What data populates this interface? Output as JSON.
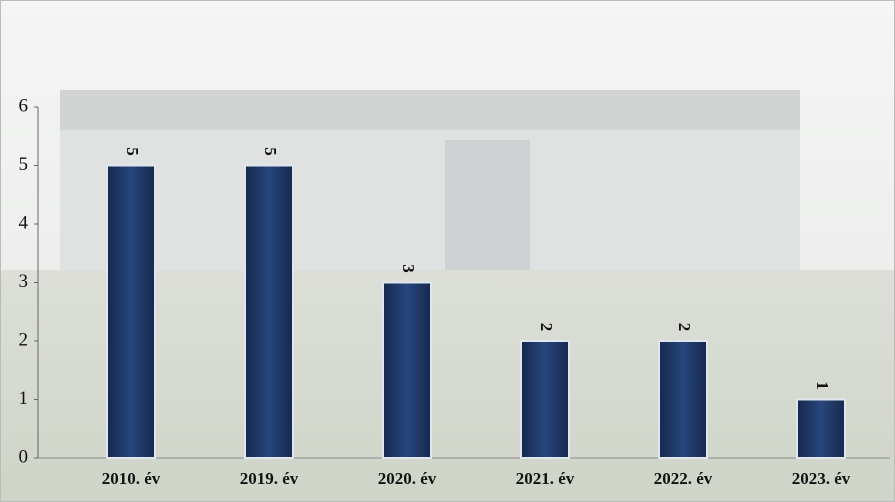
{
  "chart_data": {
    "type": "bar",
    "categories": [
      "2010. év",
      "2019. év",
      "2020. év",
      "2021. év",
      "2022. év",
      "2023. év"
    ],
    "values": [
      5,
      5,
      3,
      2,
      2,
      1
    ],
    "color": "#1f3864",
    "ylim": [
      0,
      6
    ],
    "yticks": [
      0,
      1,
      2,
      3,
      4,
      5,
      6
    ],
    "grid": false
  }
}
